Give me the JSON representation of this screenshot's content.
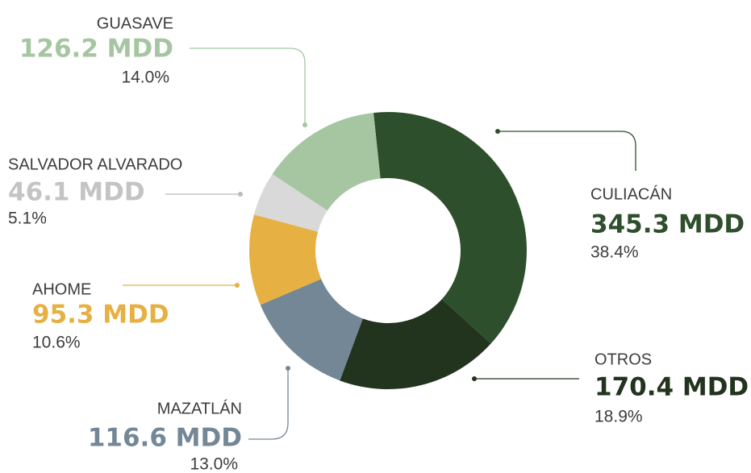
{
  "chart_data": {
    "type": "donut",
    "categories": [
      "CULIACÁN",
      "OTROS",
      "MAZATLÁN",
      "AHOME",
      "SALVADOR ALVARADO",
      "GUASAVE"
    ],
    "values": [
      345.3,
      170.4,
      116.6,
      95.3,
      46.1,
      126.2
    ],
    "value_labels": [
      "345.3 MDD",
      "170.4 MDD",
      "116.6 MDD",
      "95.3 MDD",
      "46.1 MDD",
      "126.2 MDD"
    ],
    "percent_labels": [
      "38.4%",
      "18.9%",
      "13.0%",
      "10.6%",
      "5.1%",
      "14.0%"
    ],
    "colors": [
      "#2e4f2b",
      "#22331e",
      "#748796",
      "#e6b042",
      "#d9d9d9",
      "#a5c6a1"
    ]
  }
}
